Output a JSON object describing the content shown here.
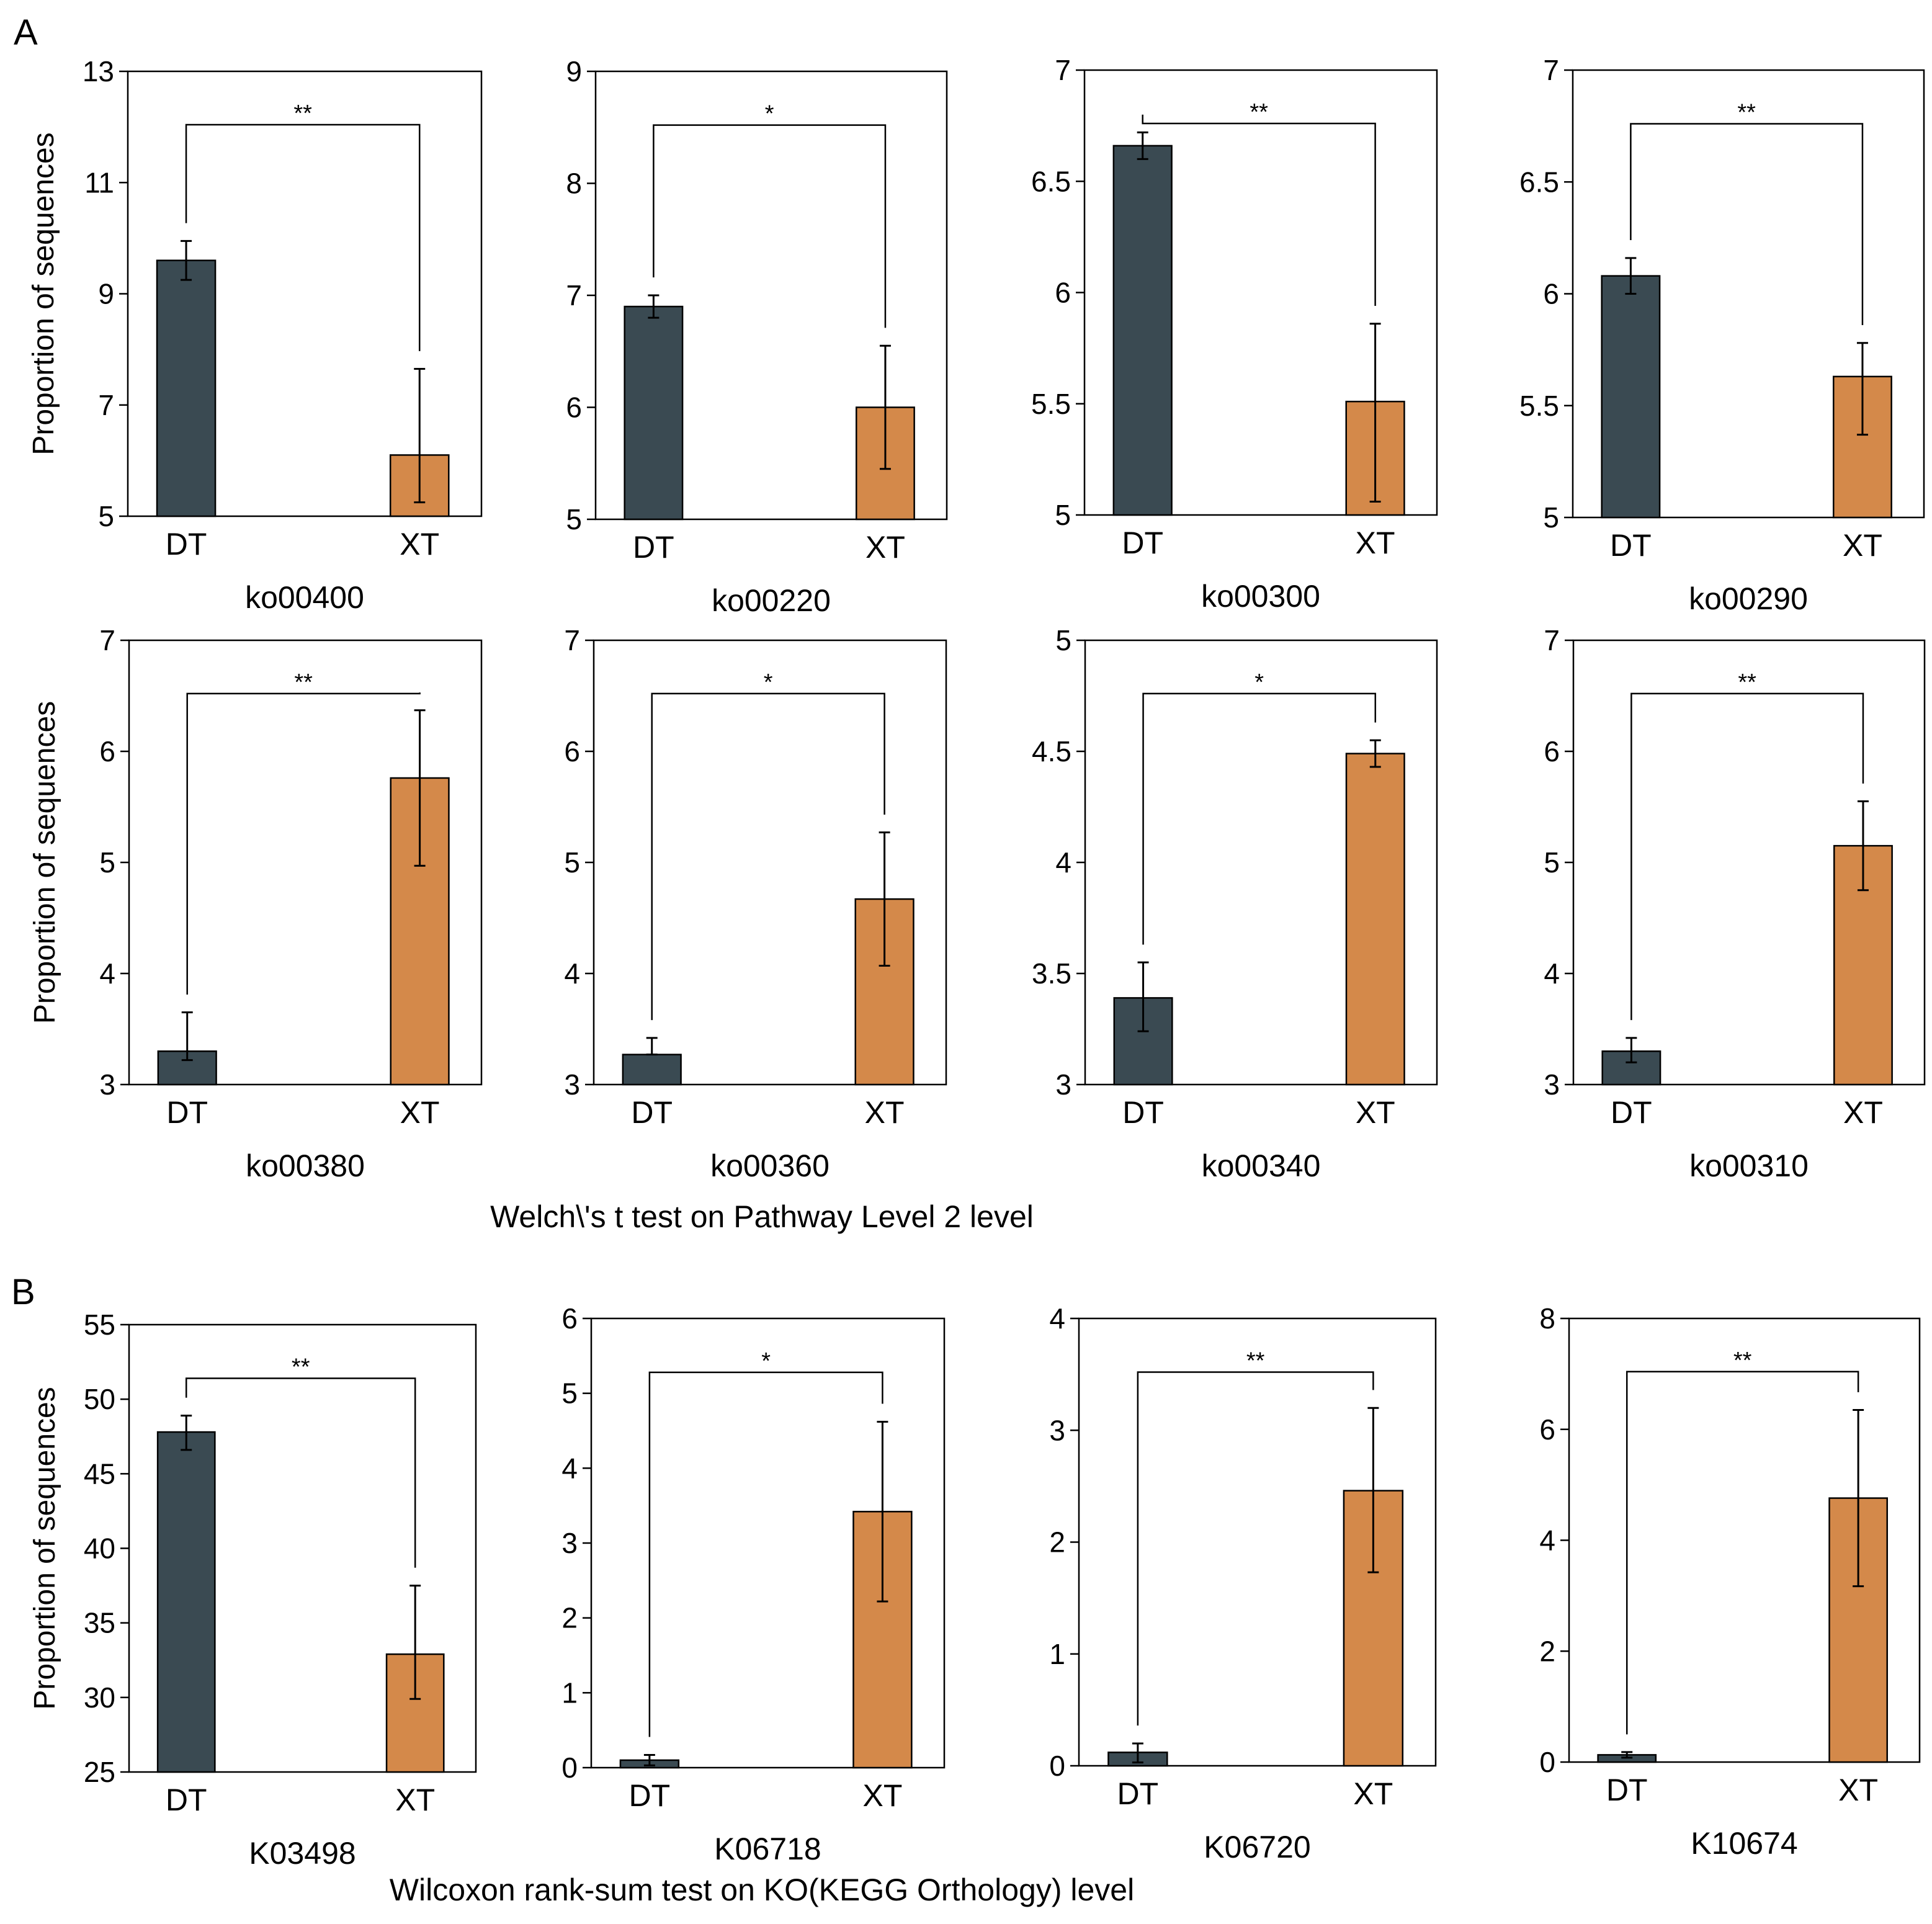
{
  "colors": {
    "DT": "#3a4a52",
    "XT": "#d4894a",
    "axis": "#000000"
  },
  "panel_labels": [
    "A",
    "B"
  ],
  "captions": {
    "A": "Welch\\'s t test on Pathway Level 2 level",
    "B": "Wilcoxon rank-sum test on KO(KEGG Orthology) level"
  },
  "ylabel": "Proportion of sequences",
  "chart_data": [
    {
      "type": "bar",
      "panel": "A",
      "categories": [
        "DT",
        "XT"
      ],
      "values": [
        9.6,
        6.1
      ],
      "errors": [
        [
          9.25,
          9.95
        ],
        [
          5.25,
          7.65
        ]
      ],
      "xlabel": "ko00400",
      "ylabel": "Proportion of sequences",
      "ylim": [
        5,
        13
      ],
      "yticks": [
        "5",
        "7",
        "9",
        "11",
        "13"
      ],
      "significance": "**"
    },
    {
      "type": "bar",
      "panel": "A",
      "categories": [
        "DT",
        "XT"
      ],
      "values": [
        6.9,
        6.0
      ],
      "errors": [
        [
          6.8,
          7.0
        ],
        [
          5.45,
          6.55
        ]
      ],
      "xlabel": "ko00220",
      "ylabel": "",
      "ylim": [
        5,
        9
      ],
      "yticks": [
        "5",
        "6",
        "7",
        "8",
        "9"
      ],
      "significance": "*"
    },
    {
      "type": "bar",
      "panel": "A",
      "categories": [
        "DT",
        "XT"
      ],
      "values": [
        6.66,
        5.51
      ],
      "errors": [
        [
          6.6,
          6.72
        ],
        [
          5.06,
          5.86
        ]
      ],
      "xlabel": "ko00300",
      "ylabel": "",
      "ylim": [
        5,
        7
      ],
      "yticks": [
        "5",
        "5.5",
        "6",
        "6.5",
        "7"
      ],
      "significance": "**"
    },
    {
      "type": "bar",
      "panel": "A",
      "categories": [
        "DT",
        "XT"
      ],
      "values": [
        6.08,
        5.63
      ],
      "errors": [
        [
          6.0,
          6.16
        ],
        [
          5.37,
          5.78
        ]
      ],
      "xlabel": "ko00290",
      "ylabel": "",
      "ylim": [
        5,
        7
      ],
      "yticks": [
        "5",
        "5.5",
        "6",
        "6.5",
        "7"
      ],
      "significance": "**"
    },
    {
      "type": "bar",
      "panel": "A",
      "categories": [
        "DT",
        "XT"
      ],
      "values": [
        3.3,
        5.76
      ],
      "errors": [
        [
          3.22,
          3.65
        ],
        [
          4.97,
          6.37
        ]
      ],
      "xlabel": "ko00380",
      "ylabel": "Proportion of sequences",
      "ylim": [
        3,
        7
      ],
      "yticks": [
        "3",
        "4",
        "5",
        "6",
        "7"
      ],
      "significance": "**"
    },
    {
      "type": "bar",
      "panel": "A",
      "categories": [
        "DT",
        "XT"
      ],
      "values": [
        3.27,
        4.67
      ],
      "errors": [
        [
          3.27,
          3.42
        ],
        [
          4.07,
          5.27
        ]
      ],
      "xlabel": "ko00360",
      "ylabel": "",
      "ylim": [
        3,
        7
      ],
      "yticks": [
        "3",
        "4",
        "5",
        "6",
        "7"
      ],
      "significance": "*"
    },
    {
      "type": "bar",
      "panel": "A",
      "categories": [
        "DT",
        "XT"
      ],
      "values": [
        3.39,
        4.49
      ],
      "errors": [
        [
          3.24,
          3.55
        ],
        [
          4.43,
          4.55
        ]
      ],
      "xlabel": "ko00340",
      "ylabel": "",
      "ylim": [
        3,
        5
      ],
      "yticks": [
        "3",
        "3.5",
        "4",
        "4.5",
        "5"
      ],
      "significance": "*"
    },
    {
      "type": "bar",
      "panel": "A",
      "categories": [
        "DT",
        "XT"
      ],
      "values": [
        3.3,
        5.15
      ],
      "errors": [
        [
          3.2,
          3.42
        ],
        [
          4.75,
          5.55
        ]
      ],
      "xlabel": "ko00310",
      "ylabel": "",
      "ylim": [
        3,
        7
      ],
      "yticks": [
        "3",
        "4",
        "5",
        "6",
        "7"
      ],
      "significance": "**"
    },
    {
      "type": "bar",
      "panel": "B",
      "categories": [
        "DT",
        "XT"
      ],
      "values": [
        47.8,
        32.9
      ],
      "errors": [
        [
          46.6,
          48.9
        ],
        [
          29.9,
          37.5
        ]
      ],
      "xlabel": "K03498",
      "ylabel": "Proportion of sequences",
      "ylim": [
        25,
        55
      ],
      "yticks": [
        "25",
        "30",
        "35",
        "40",
        "45",
        "50",
        "55"
      ],
      "significance": "**"
    },
    {
      "type": "bar",
      "panel": "B",
      "categories": [
        "DT",
        "XT"
      ],
      "values": [
        0.1,
        3.42
      ],
      "errors": [
        [
          0.03,
          0.17
        ],
        [
          2.22,
          4.62
        ]
      ],
      "xlabel": "K06718",
      "ylabel": "",
      "ylim": [
        0,
        6
      ],
      "yticks": [
        "0",
        "1",
        "2",
        "3",
        "4",
        "5",
        "6"
      ],
      "significance": "*"
    },
    {
      "type": "bar",
      "panel": "B",
      "categories": [
        "DT",
        "XT"
      ],
      "values": [
        0.12,
        2.46
      ],
      "errors": [
        [
          0.03,
          0.2
        ],
        [
          1.73,
          3.2
        ]
      ],
      "xlabel": "K06720",
      "ylabel": "",
      "ylim": [
        0,
        4
      ],
      "yticks": [
        "0",
        "1",
        "2",
        "3",
        "4"
      ],
      "significance": "**"
    },
    {
      "type": "bar",
      "panel": "B",
      "categories": [
        "DT",
        "XT"
      ],
      "values": [
        0.13,
        4.76
      ],
      "errors": [
        [
          0.08,
          0.18
        ],
        [
          3.17,
          6.35
        ]
      ],
      "xlabel": "K10674",
      "ylabel": "",
      "ylim": [
        0,
        8
      ],
      "yticks": [
        "0",
        "2",
        "4",
        "6",
        "8"
      ],
      "significance": "**"
    }
  ]
}
